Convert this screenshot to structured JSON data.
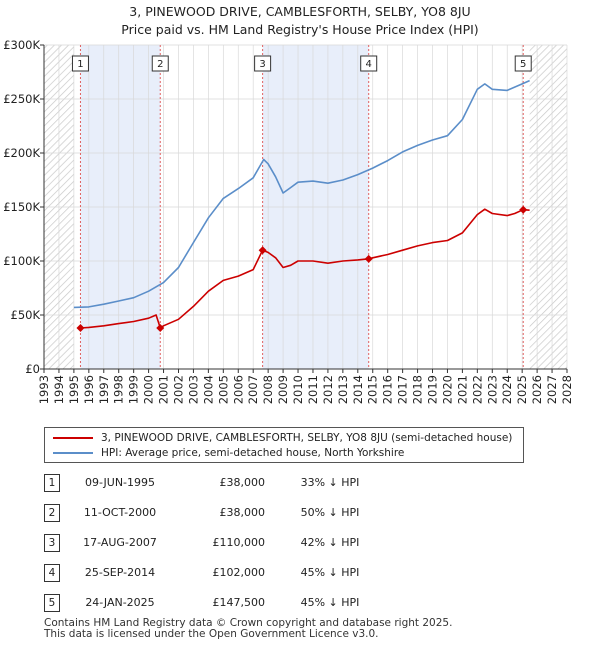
{
  "title": "3, PINEWOOD DRIVE, CAMBLESFORTH, SELBY, YO8 8JU",
  "subtitle": "Price paid vs. HM Land Registry's House Price Index (HPI)",
  "colors": {
    "red": "#cc0000",
    "blue": "#5b8ec9",
    "band": "#e8eefa",
    "hatch": "#bfbfbf"
  },
  "chart_data": {
    "type": "line",
    "title": "Price paid vs. HM Land Registry's House Price Index (HPI)",
    "xlim": [
      1993,
      2028
    ],
    "ylim": [
      0,
      300000
    ],
    "yticks": [
      0,
      50000,
      100000,
      150000,
      200000,
      250000,
      300000
    ],
    "ytick_labels": [
      "£0",
      "£50K",
      "£100K",
      "£150K",
      "£200K",
      "£250K",
      "£300K"
    ],
    "xticks": [
      "1993",
      "1994",
      "1995",
      "1996",
      "1997",
      "1998",
      "1999",
      "2000",
      "2001",
      "2002",
      "2003",
      "2004",
      "2005",
      "2006",
      "2007",
      "2008",
      "2009",
      "2010",
      "2011",
      "2012",
      "2013",
      "2014",
      "2015",
      "2016",
      "2017",
      "2018",
      "2019",
      "2020",
      "2021",
      "2022",
      "2023",
      "2024",
      "2025",
      "2026",
      "2027",
      "2028"
    ],
    "hatched_before": 1995.0,
    "hatched_after": 2025.5,
    "shaded_bands": [
      [
        1995.44,
        2000.78
      ],
      [
        2007.63,
        2014.73
      ]
    ],
    "series": [
      {
        "name": "3, PINEWOOD DRIVE, CAMBLESFORTH, SELBY, YO8 8JU (semi-detached house)",
        "color": "#cc0000",
        "x": [
          1995.44,
          1996.0,
          1997.0,
          1998.0,
          1999.0,
          2000.0,
          2000.5,
          2000.78,
          2001.0,
          2002.0,
          2003.0,
          2004.0,
          2005.0,
          2006.0,
          2007.0,
          2007.63,
          2008.0,
          2008.5,
          2009.0,
          2009.5,
          2010.0,
          2011.0,
          2012.0,
          2013.0,
          2014.0,
          2014.73,
          2015.0,
          2016.0,
          2017.0,
          2018.0,
          2019.0,
          2020.0,
          2021.0,
          2022.0,
          2022.5,
          2023.0,
          2024.0,
          2024.5,
          2025.07,
          2025.5
        ],
        "y": [
          38000,
          38500,
          40000,
          42000,
          44000,
          47000,
          50000,
          38000,
          40000,
          46000,
          58000,
          72000,
          82000,
          86000,
          92000,
          110000,
          108000,
          103000,
          94000,
          96000,
          100000,
          100000,
          98000,
          100000,
          101000,
          102000,
          103000,
          106000,
          110000,
          114000,
          117000,
          119000,
          126000,
          143000,
          148000,
          144000,
          142000,
          144000,
          147500,
          147000
        ]
      },
      {
        "name": "HPI: Average price, semi-detached house, North Yorkshire",
        "color": "#5b8ec9",
        "x": [
          1995.0,
          1996.0,
          1997.0,
          1998.0,
          1999.0,
          2000.0,
          2001.0,
          2002.0,
          2003.0,
          2004.0,
          2005.0,
          2006.0,
          2007.0,
          2007.7,
          2008.0,
          2008.5,
          2009.0,
          2009.5,
          2010.0,
          2011.0,
          2012.0,
          2013.0,
          2014.0,
          2015.0,
          2016.0,
          2017.0,
          2018.0,
          2019.0,
          2020.0,
          2021.0,
          2022.0,
          2022.5,
          2023.0,
          2024.0,
          2025.0,
          2025.5
        ],
        "y": [
          57000,
          57500,
          60000,
          63000,
          66000,
          72000,
          80000,
          94000,
          117000,
          140000,
          158000,
          167000,
          177000,
          194000,
          190000,
          178000,
          163000,
          168000,
          173000,
          174000,
          172000,
          175000,
          180000,
          186000,
          193000,
          201000,
          207000,
          212000,
          216000,
          231000,
          259000,
          264000,
          259000,
          258000,
          264000,
          267000
        ]
      }
    ],
    "sales": [
      {
        "n": "1",
        "x": 1995.44,
        "y": 38000
      },
      {
        "n": "2",
        "x": 2000.78,
        "y": 38000
      },
      {
        "n": "3",
        "x": 2007.63,
        "y": 110000
      },
      {
        "n": "4",
        "x": 2014.73,
        "y": 102000
      },
      {
        "n": "5",
        "x": 2025.07,
        "y": 147500
      }
    ]
  },
  "legend": {
    "red_label": "3, PINEWOOD DRIVE, CAMBLESFORTH, SELBY, YO8 8JU (semi-detached house)",
    "blue_label": "HPI: Average price, semi-detached house, North Yorkshire"
  },
  "sales_table": [
    {
      "num": "1",
      "date": "09-JUN-1995",
      "price": "£38,000",
      "pct": "33% ↓ HPI"
    },
    {
      "num": "2",
      "date": "11-OCT-2000",
      "price": "£38,000",
      "pct": "50% ↓ HPI"
    },
    {
      "num": "3",
      "date": "17-AUG-2007",
      "price": "£110,000",
      "pct": "42% ↓ HPI"
    },
    {
      "num": "4",
      "date": "25-SEP-2014",
      "price": "£102,000",
      "pct": "45% ↓ HPI"
    },
    {
      "num": "5",
      "date": "24-JAN-2025",
      "price": "£147,500",
      "pct": "45% ↓ HPI"
    }
  ],
  "footer": {
    "line1": "Contains HM Land Registry data © Crown copyright and database right 2025.",
    "line2": "This data is licensed under the Open Government Licence v3.0."
  }
}
